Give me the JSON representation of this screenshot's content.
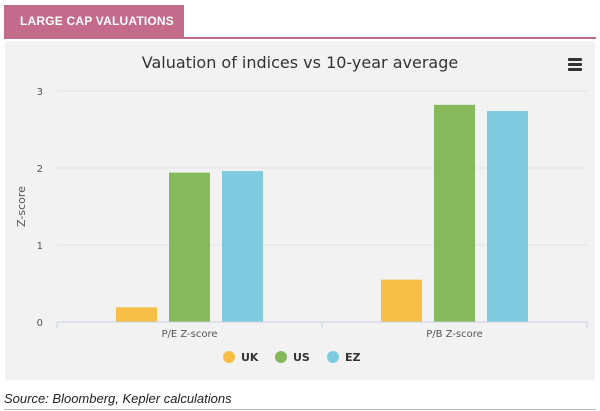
{
  "header": {
    "tab_label": "LARGE CAP VALUATIONS",
    "accent_color": "#c46a8a"
  },
  "chart_data": {
    "type": "bar",
    "title": "Valuation of indices vs 10-year average",
    "xlabel": "",
    "ylabel": "Z-score",
    "ylim": [
      0,
      3
    ],
    "yticks": [
      0,
      1,
      2,
      3
    ],
    "grid": true,
    "legend_position": "bottom-center",
    "categories": [
      "P/E Z-score",
      "P/B Z-score"
    ],
    "series": [
      {
        "name": "UK",
        "color": "#f7be45",
        "values": [
          0.19,
          0.55
        ]
      },
      {
        "name": "US",
        "color": "#86b95b",
        "values": [
          1.94,
          2.82
        ]
      },
      {
        "name": "EZ",
        "color": "#7ecbe0",
        "values": [
          1.96,
          2.74
        ]
      }
    ]
  },
  "menu_icon": "hamburger-menu-icon",
  "footer": {
    "source": "Source: Bloomberg, Kepler calculations"
  }
}
